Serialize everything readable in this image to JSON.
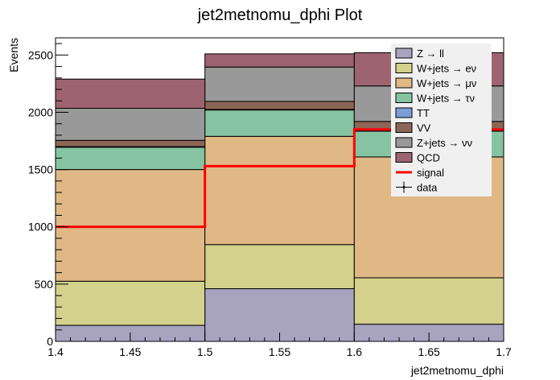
{
  "chart_data": {
    "type": "bar",
    "stacked": true,
    "title": "jet2metnomu_dphi Plot",
    "xlabel": "jet2metnomu_dphi",
    "ylabel": "Events",
    "xlim": [
      1.4,
      1.7
    ],
    "ylim": [
      0,
      2650
    ],
    "bin_edges": [
      1.4,
      1.5,
      1.6,
      1.7
    ],
    "x_ticks": [
      "1.4",
      "1.45",
      "1.5",
      "1.55",
      "1.6",
      "1.65",
      "1.7"
    ],
    "x_tick_values": [
      1.4,
      1.45,
      1.5,
      1.55,
      1.6,
      1.65,
      1.7
    ],
    "y_ticks": [
      "0",
      "500",
      "1000",
      "1500",
      "2000",
      "2500"
    ],
    "y_tick_values": [
      0,
      500,
      1000,
      1500,
      2000,
      2500
    ],
    "series": [
      {
        "name": "Z → ll",
        "values": [
          140,
          460,
          150
        ],
        "color": "#a8a4c0"
      },
      {
        "name": "W+jets → eν",
        "values": [
          385,
          385,
          405
        ],
        "color": "#d3d18c"
      },
      {
        "name": "W+jets → μν",
        "values": [
          975,
          945,
          1055
        ],
        "color": "#dfb886"
      },
      {
        "name": "W+jets → τν",
        "values": [
          195,
          230,
          225
        ],
        "color": "#86c3a2"
      },
      {
        "name": "TT",
        "values": [
          5,
          5,
          5
        ],
        "color": "#7b9ed8"
      },
      {
        "name": "VV",
        "values": [
          55,
          70,
          80
        ],
        "color": "#8b6656"
      },
      {
        "name": "Z+jets → νν",
        "values": [
          280,
          300,
          310
        ],
        "color": "#999999"
      },
      {
        "name": "QCD",
        "values": [
          255,
          115,
          290
        ],
        "color": "#9d6370"
      }
    ],
    "signal": {
      "name": "signal",
      "values": [
        1000,
        1530,
        1850
      ],
      "color": "#ff0000"
    },
    "data": {
      "name": "data"
    },
    "legend_position": "top-right"
  }
}
